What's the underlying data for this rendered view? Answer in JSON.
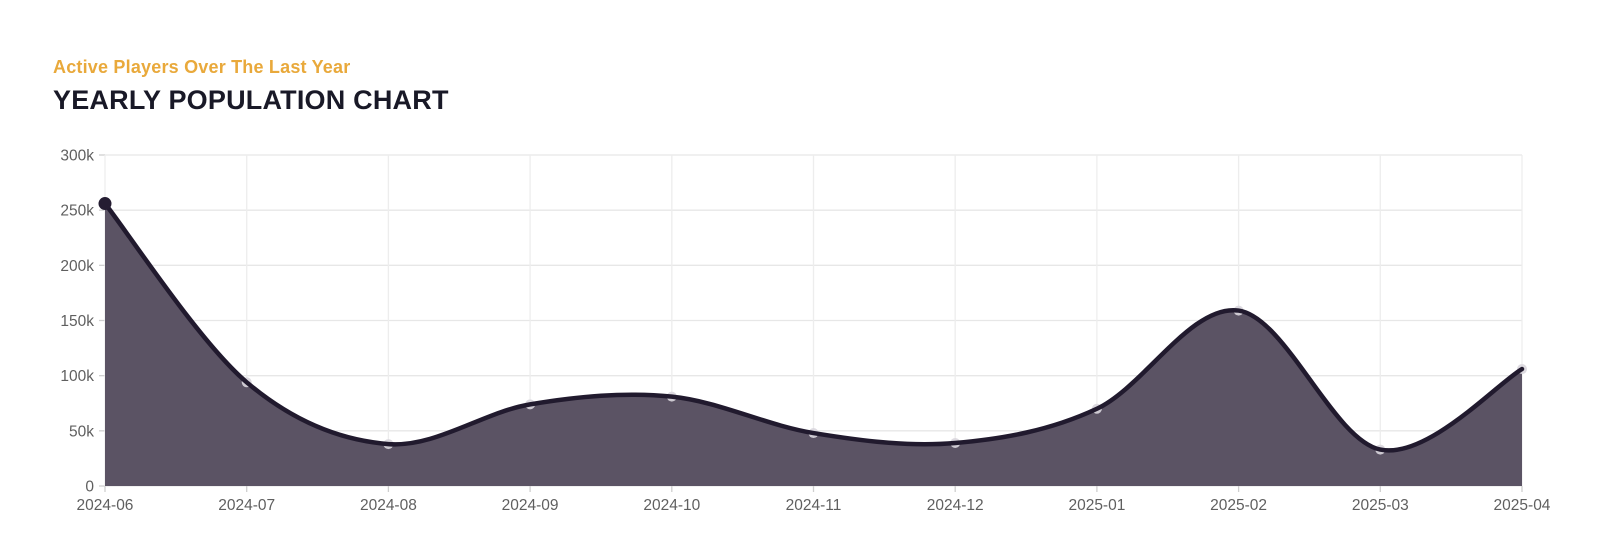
{
  "header": {
    "subtitle": "Active Players Over The Last Year",
    "title": "YEARLY POPULATION CHART"
  },
  "colors": {
    "subtitle_accent": "#E9A93B",
    "title_text": "#191927",
    "area_fill": "#5B5364",
    "line": "#211A2E",
    "marker_light": "#D9D6DD",
    "marker_first": "#251D32",
    "grid_horizontal": "#E7E7E7",
    "grid_vertical": "#EDEDED",
    "tick": "#CFCFCF",
    "axis_text": "#5F5F5F",
    "background": "#FFFFFF"
  },
  "chart_data": {
    "type": "area",
    "title": "YEARLY POPULATION CHART",
    "subtitle": "Active Players Over The Last Year",
    "x": [
      "2024-06",
      "2024-07",
      "2024-08",
      "2024-09",
      "2024-10",
      "2024-11",
      "2024-12",
      "2025-01",
      "2025-02",
      "2025-03",
      "2025-04"
    ],
    "values": [
      256000,
      94000,
      38000,
      74000,
      81000,
      48000,
      39000,
      70000,
      159000,
      33000,
      106000
    ],
    "series_name": "Active Players",
    "xlabel": "",
    "ylabel": "",
    "ylim": [
      0,
      300000
    ],
    "y_ticks": [
      0,
      50000,
      100000,
      150000,
      200000,
      250000,
      300000
    ],
    "y_tick_labels": [
      "0",
      "50k",
      "100k",
      "150k",
      "200k",
      "250k",
      "300k"
    ],
    "grid": true,
    "legend": false,
    "smooth": true,
    "markers": "faint dots on every point, solid dark dot on first point"
  }
}
